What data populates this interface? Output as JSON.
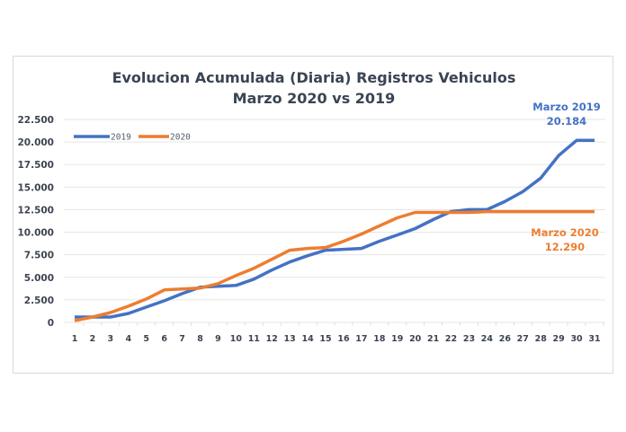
{
  "chart_data": {
    "type": "line",
    "title": "Evolucion Acumulada (Diaria) Registros Vehiculos",
    "subtitle": "Marzo 2020 vs 2019",
    "xlabel": "",
    "ylabel": "",
    "categories": [
      "1",
      "2",
      "3",
      "4",
      "5",
      "6",
      "7",
      "8",
      "9",
      "10",
      "11",
      "12",
      "13",
      "14",
      "15",
      "16",
      "17",
      "18",
      "19",
      "20",
      "21",
      "22",
      "23",
      "24",
      "26",
      "27",
      "28",
      "29",
      "30",
      "31"
    ],
    "ylim": [
      0,
      22500
    ],
    "yticks": [
      0,
      2500,
      5000,
      7500,
      10000,
      12500,
      15000,
      17500,
      20000,
      22500
    ],
    "ytick_labels": [
      "0",
      "2.500",
      "5.000",
      "7.500",
      "10.000",
      "12.500",
      "15.000",
      "17.500",
      "20.000",
      "22.500"
    ],
    "grid": true,
    "legend_position": "top-left",
    "series": [
      {
        "name": "2019",
        "color": "#4472c4",
        "values": [
          600,
          600,
          600,
          1000,
          1700,
          2400,
          3200,
          3900,
          4000,
          4100,
          4800,
          5800,
          6700,
          7400,
          8000,
          8100,
          8200,
          9000,
          9700,
          10400,
          11400,
          12300,
          12500,
          12500,
          13400,
          14500,
          16000,
          18500,
          20184,
          20184
        ]
      },
      {
        "name": "2020",
        "color": "#ed7d31",
        "values": [
          200,
          600,
          1100,
          1800,
          2600,
          3600,
          3700,
          3800,
          4300,
          5200,
          6000,
          7000,
          8000,
          8200,
          8300,
          9000,
          9800,
          10700,
          11600,
          12200,
          12200,
          12200,
          12200,
          12290,
          12290,
          12290,
          12290,
          12290,
          12290,
          12290
        ]
      }
    ],
    "annotations": [
      {
        "series": "2019",
        "line1": "Marzo 2019",
        "line2": "20.184",
        "color": "#4472c4"
      },
      {
        "series": "2020",
        "line1": "Marzo 2020",
        "line2": "12.290",
        "color": "#ed7d31"
      }
    ]
  }
}
